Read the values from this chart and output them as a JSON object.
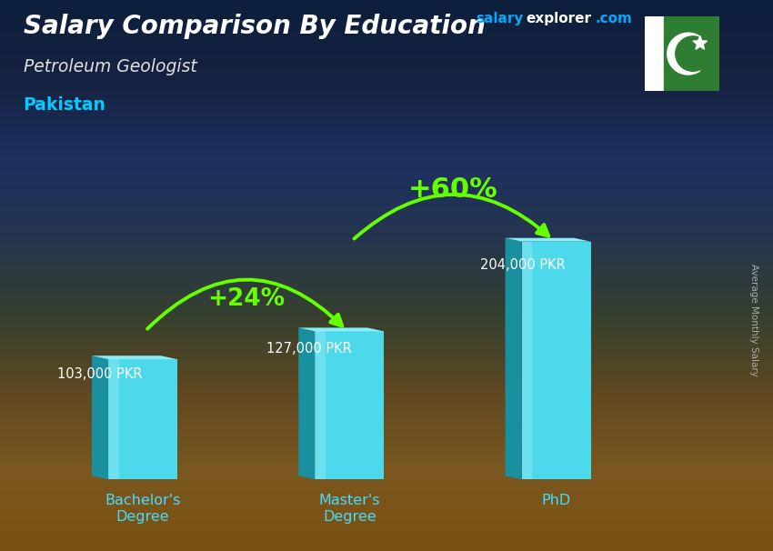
{
  "title_bold": "Salary Comparison By Education",
  "subtitle": "Petroleum Geologist",
  "location": "Pakistan",
  "watermark_salary": "salary",
  "watermark_explorer": "explorer",
  "watermark_com": ".com",
  "ylabel": "Average Monthly Salary",
  "categories": [
    "Bachelor's\nDegree",
    "Master's\nDegree",
    "PhD"
  ],
  "values": [
    103000,
    127000,
    204000
  ],
  "value_labels": [
    "103,000 PKR",
    "127,000 PKR",
    "204,000 PKR"
  ],
  "pct_labels": [
    "+24%",
    "+60%"
  ],
  "bar_face_color": "#4dd9ec",
  "bar_left_color": "#1a8fa0",
  "bar_top_color": "#88eef8",
  "arrow_color": "#66ff00",
  "title_color": "#ffffff",
  "subtitle_color": "#e0e0e0",
  "location_color": "#00ccff",
  "value_label_color": "#ffffff",
  "pct_label_color": "#66ff00",
  "watermark_salary_color": "#00aaff",
  "watermark_explorer_color": "#ffffff",
  "watermark_com_color": "#00aaff",
  "cat_label_color": "#44ddff",
  "ylabel_color": "#aaaaaa",
  "bg_top": "#0d1f3c",
  "bg_mid": "#1a2a50",
  "bg_bottom": "#7a5010",
  "ylim": [
    0,
    260000
  ],
  "bar_width": 0.5,
  "x_positions": [
    1.0,
    2.5,
    4.0
  ]
}
